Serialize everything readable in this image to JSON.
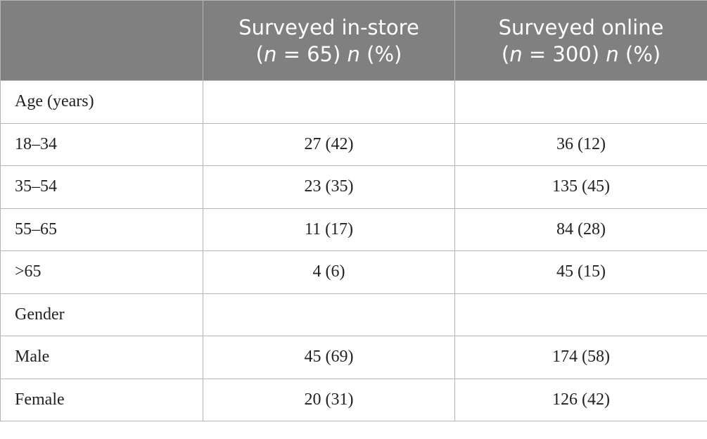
{
  "table": {
    "columns": [
      {
        "title": "Surveyed in-store",
        "subtitle": [
          "(",
          "n",
          " = 65) ",
          "n",
          " (%)"
        ]
      },
      {
        "title": "Surveyed online",
        "subtitle": [
          "(",
          "n",
          " = 300) ",
          "n",
          " (%)"
        ]
      }
    ],
    "rows": [
      {
        "label": "Age (years)"
      },
      {
        "label": "18–34",
        "values": [
          "27 (42)",
          "36 (12)"
        ]
      },
      {
        "label": "35–54",
        "values": [
          "23 (35)",
          "135 (45)"
        ]
      },
      {
        "label": "55–65",
        "values": [
          "11 (17)",
          "84 (28)"
        ]
      },
      {
        "label": ">65",
        "values": [
          "4 (6)",
          "45 (15)"
        ]
      },
      {
        "label": "Gender"
      },
      {
        "label": "Male",
        "values": [
          "45 (69)",
          "174 (58)"
        ]
      },
      {
        "label": "Female",
        "values": [
          "20 (31)",
          "126 (42)"
        ]
      }
    ]
  }
}
